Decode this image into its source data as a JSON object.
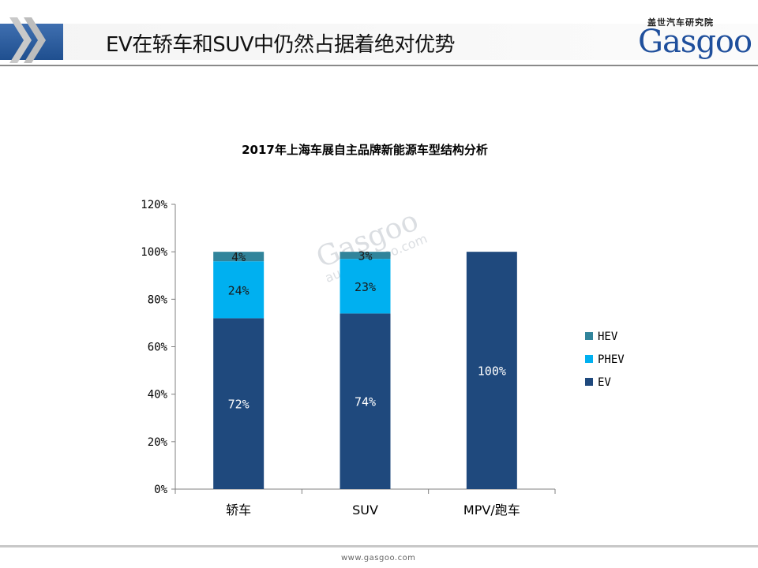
{
  "header": {
    "title": "EV在轿车和SUV中仍然占据着绝对优势",
    "logo_cn": "盖世汽车研究院",
    "logo_word": "Gasgoo",
    "accent_color": "#1f4f8f"
  },
  "watermark": {
    "line1": "Gasgoo",
    "line2": "auto.gasgoo.com"
  },
  "footer": {
    "url": "www.gasgoo.com"
  },
  "chart_data": {
    "type": "bar",
    "stacked": true,
    "title": "2017年上海车展自主品牌新能源车型结构分析",
    "categories": [
      "轿车",
      "SUV",
      "MPV/跑车"
    ],
    "series": [
      {
        "name": "EV",
        "values": [
          72,
          74,
          100
        ],
        "labels": [
          "72%",
          "74%",
          "100%"
        ],
        "color": "#1f497d",
        "label_color": "#ffffff"
      },
      {
        "name": "PHEV",
        "values": [
          24,
          23,
          0
        ],
        "labels": [
          "24%",
          "23%",
          ""
        ],
        "color": "#00b0f0",
        "label_color": "#1a1a1a"
      },
      {
        "name": "HEV",
        "values": [
          4,
          3,
          0
        ],
        "labels": [
          "4%",
          "3%",
          ""
        ],
        "color": "#31849b",
        "label_color": "#1a1a1a"
      }
    ],
    "legend_order": [
      "HEV",
      "PHEV",
      "EV"
    ],
    "ylim": [
      0,
      120
    ],
    "yticks": [
      0,
      20,
      40,
      60,
      80,
      100,
      120
    ],
    "ytick_labels": [
      "0%",
      "20%",
      "40%",
      "60%",
      "80%",
      "100%",
      "120%"
    ],
    "grid": false,
    "legend_position": "right"
  }
}
